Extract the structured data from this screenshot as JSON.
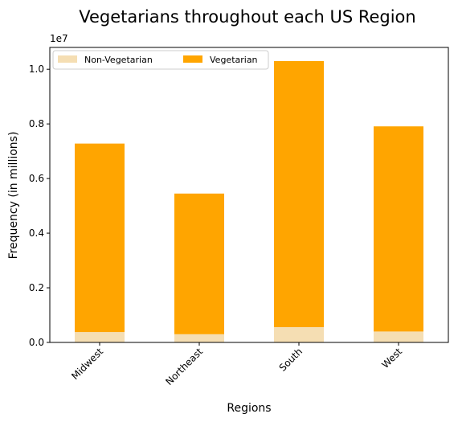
{
  "chart_data": {
    "type": "bar",
    "stacked": true,
    "title": "Vegetarians throughout each US Region",
    "xlabel": "Regions",
    "ylabel": "Frequency (in millions)",
    "y_offset_label": "1e7",
    "y_scale_factor": 10000000,
    "categories": [
      "Midwest",
      "Northeast",
      "South",
      "West"
    ],
    "series": [
      {
        "name": "Non-Vegetarian",
        "color": "#f5deb3",
        "values": [
          380000,
          300000,
          560000,
          400000
        ]
      },
      {
        "name": "Vegetarian",
        "color": "#ffa500",
        "values": [
          6900000,
          5150000,
          9740000,
          7510000
        ]
      }
    ],
    "ylim": [
      0,
      10800000
    ],
    "yticks": [
      0,
      2000000,
      4000000,
      6000000,
      8000000,
      10000000
    ],
    "ytick_labels": [
      "0.0",
      "0.2",
      "0.4",
      "0.6",
      "0.8",
      "1.0"
    ],
    "grid": false,
    "legend": "top-left",
    "legend_ncol": 2
  }
}
